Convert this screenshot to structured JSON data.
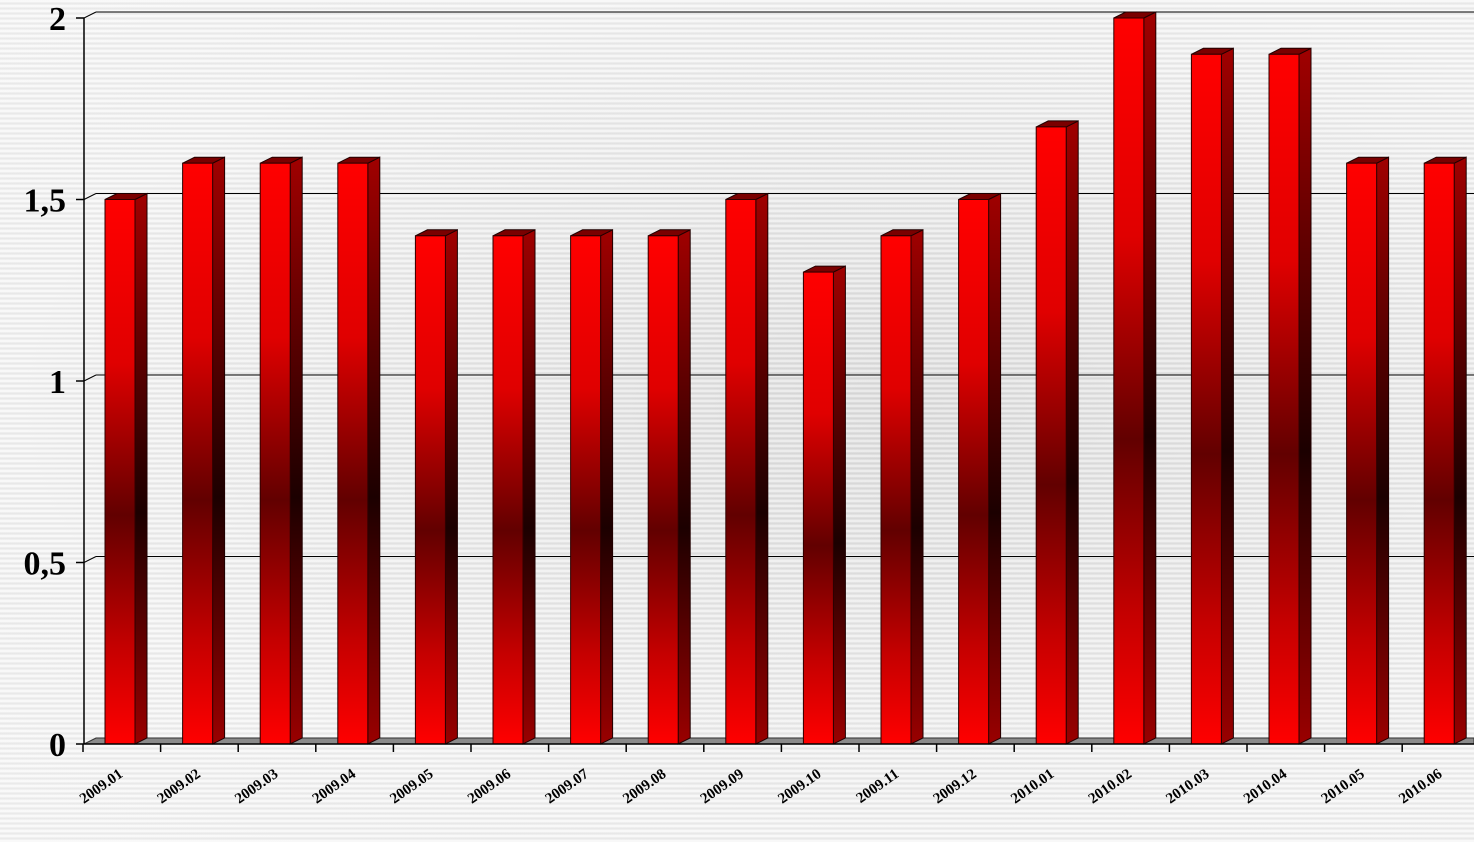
{
  "chart_data": {
    "type": "bar",
    "categories": [
      "2009.01",
      "2009.02",
      "2009.03",
      "2009.04",
      "2009.05",
      "2009.06",
      "2009.07",
      "2009.08",
      "2009.09",
      "2009.10",
      "2009.11",
      "2009.12",
      "2010.01",
      "2010.02",
      "2010.03",
      "2010.04",
      "2010.05",
      "2010.06"
    ],
    "values": [
      1.5,
      1.6,
      1.6,
      1.6,
      1.4,
      1.4,
      1.4,
      1.4,
      1.5,
      1.3,
      1.4,
      1.5,
      1.7,
      2.0,
      1.9,
      1.9,
      1.6,
      1.6
    ],
    "ylim": [
      0,
      2
    ],
    "yticks": [
      0,
      0.5,
      1,
      1.5,
      2
    ],
    "ytick_labels": [
      "0",
      "0,5",
      "1",
      "1,5",
      "2"
    ],
    "grid": true,
    "legend": "none",
    "title": "",
    "xlabel": "",
    "ylabel": "",
    "bar_color": "#ff0000",
    "bar_shade_color": "#6b0000"
  }
}
